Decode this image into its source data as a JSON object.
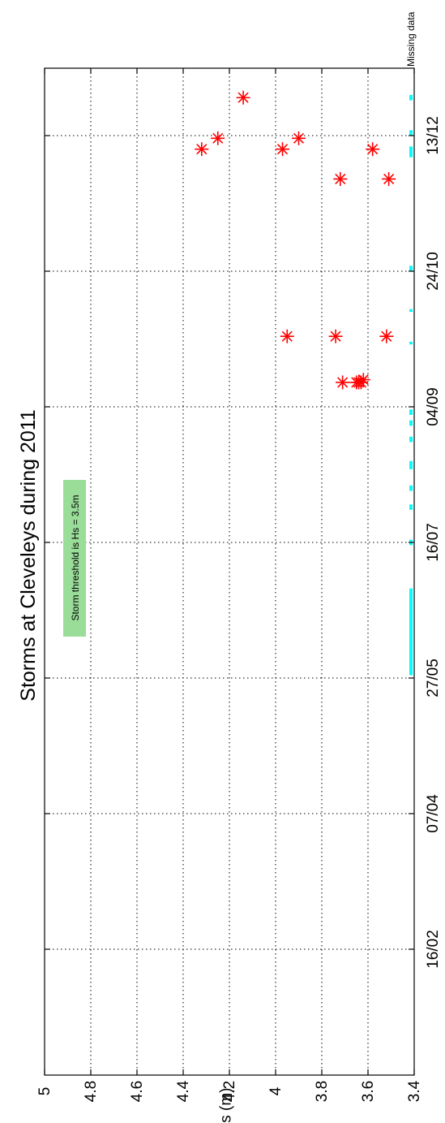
{
  "chart_data": {
    "type": "scatter",
    "title": "Storms at Cleveleys during 2011",
    "ylabel": "Hs (m)",
    "xlabel": "",
    "ylim": [
      3.4,
      5.0
    ],
    "yticks": [
      "3.4",
      "3.6",
      "3.8",
      "4",
      "4.2",
      "4.4",
      "4.6",
      "4.8",
      "5"
    ],
    "xticks": [
      "16/02",
      "07/04",
      "27/05",
      "16/07",
      "04/09",
      "24/10",
      "13/12"
    ],
    "xtick_dates": [
      "2011-02-16",
      "2011-04-07",
      "2011-05-27",
      "2011-07-16",
      "2011-09-04",
      "2011-10-24",
      "2011-12-13"
    ],
    "xlim": [
      "2011-01-01",
      "2011-12-31"
    ],
    "grid": true,
    "annotation": "Storm threshold is Hs = 3.5m",
    "missing_label": "Missing data",
    "series": [
      {
        "marker": "asterisk",
        "color": "#ff0000",
        "points": [
          {
            "x": "2011-09-13",
            "y": 3.71
          },
          {
            "x": "2011-09-13",
            "y": 3.65
          },
          {
            "x": "2011-09-13",
            "y": 3.64
          },
          {
            "x": "2011-09-13",
            "y": 3.63
          },
          {
            "x": "2011-09-14",
            "y": 3.62
          },
          {
            "x": "2011-09-30",
            "y": 3.95
          },
          {
            "x": "2011-09-30",
            "y": 3.74
          },
          {
            "x": "2011-09-30",
            "y": 3.52
          },
          {
            "x": "2011-11-27",
            "y": 3.72
          },
          {
            "x": "2011-11-27",
            "y": 3.51
          },
          {
            "x": "2011-12-08",
            "y": 4.32
          },
          {
            "x": "2011-12-08",
            "y": 3.97
          },
          {
            "x": "2011-12-08",
            "y": 3.58
          },
          {
            "x": "2011-12-12",
            "y": 4.25
          },
          {
            "x": "2011-12-12",
            "y": 3.9
          },
          {
            "x": "2011-12-27",
            "y": 4.14
          }
        ]
      },
      {
        "marker": "segment",
        "color": "#00ffff",
        "ranges": [
          [
            "2011-05-28",
            "2011-06-29"
          ],
          [
            "2011-07-15",
            "2011-07-17"
          ],
          [
            "2011-07-28",
            "2011-07-30"
          ],
          [
            "2011-08-04",
            "2011-08-06"
          ],
          [
            "2011-08-12",
            "2011-08-15"
          ],
          [
            "2011-08-22",
            "2011-08-24"
          ],
          [
            "2011-08-28",
            "2011-08-30"
          ],
          [
            "2011-09-01",
            "2011-09-03"
          ],
          [
            "2011-09-27",
            "2011-09-28"
          ],
          [
            "2011-10-09",
            "2011-10-10"
          ],
          [
            "2011-10-24",
            "2011-10-26"
          ],
          [
            "2011-12-05",
            "2011-12-09"
          ],
          [
            "2011-12-13",
            "2011-12-15"
          ],
          [
            "2011-12-26",
            "2011-12-28"
          ]
        ]
      }
    ]
  }
}
